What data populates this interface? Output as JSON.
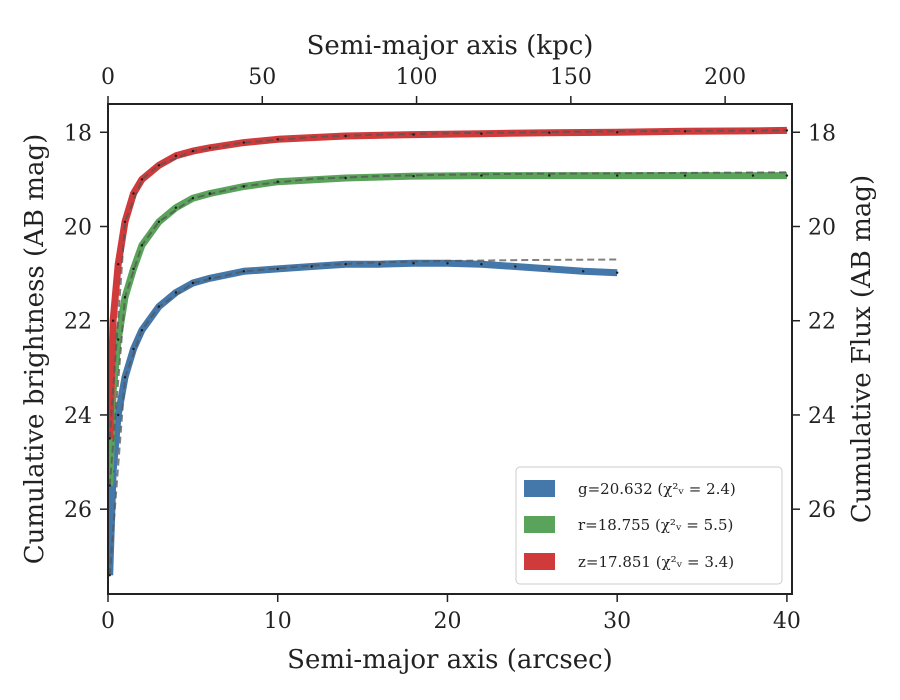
{
  "chart_data": {
    "type": "line",
    "xlabel": "Semi-major axis (arcsec)",
    "xlabel_top": "Semi-major axis (kpc)",
    "ylabel": "Cumulative brightness (AB mag)",
    "ylabel_right": "Cumulative Flux (AB mag)",
    "xlim": [
      0,
      40.3
    ],
    "ylim": [
      27.8,
      17.4
    ],
    "y_inverted": true,
    "x_ticks": [
      "0",
      "10",
      "20",
      "30",
      "40"
    ],
    "x_tick_values": [
      0,
      10,
      20,
      30,
      40
    ],
    "x_top_ticks": [
      "0",
      "50",
      "100",
      "150",
      "200"
    ],
    "x_top_tick_values_arcsec": [
      0,
      9.09,
      18.18,
      27.27,
      36.36
    ],
    "y_ticks": [
      "18",
      "20",
      "22",
      "24",
      "26"
    ],
    "y_tick_values": [
      18,
      20,
      22,
      24,
      26
    ],
    "y_right_ticks": [
      "18",
      "20",
      "22",
      "24",
      "26"
    ],
    "grid": false,
    "legend_position": "bottom-right",
    "series": [
      {
        "name": "g=20.632 ($\\chi^2_\\nu=2.4$)",
        "legend_label": "g=20.632 (χ²ᵥ = 2.4)",
        "color": "#4477aa",
        "x": [
          0.1,
          0.3,
          0.6,
          1.0,
          1.5,
          2.0,
          3.0,
          4.0,
          5.0,
          6.0,
          8.0,
          10.0,
          12.0,
          14.0,
          16.0,
          18.0,
          20.0,
          22.0,
          24.0,
          26.0,
          28.0,
          30.0
        ],
        "y": [
          27.4,
          25.2,
          24.0,
          23.2,
          22.6,
          22.2,
          21.7,
          21.4,
          21.2,
          21.1,
          20.95,
          20.9,
          20.85,
          20.8,
          20.8,
          20.78,
          20.78,
          20.8,
          20.85,
          20.9,
          20.95,
          20.98
        ],
        "model_x": [
          0.1,
          1.0,
          2.0,
          3.0,
          5.0,
          8.0,
          12.0,
          16.0,
          20.0,
          25.0,
          30.0
        ],
        "model_y": [
          27.4,
          23.2,
          22.2,
          21.7,
          21.2,
          20.95,
          20.83,
          20.76,
          20.73,
          20.71,
          20.7
        ]
      },
      {
        "name": "r=18.755 ($\\chi^2_\\nu=5.5$)",
        "legend_label": "r=18.755 (χ²ᵥ = 5.5)",
        "color": "#5aa35a",
        "x": [
          0.1,
          0.3,
          0.6,
          1.0,
          1.5,
          2.0,
          3.0,
          4.0,
          5.0,
          6.0,
          8.0,
          10.0,
          14.0,
          18.0,
          22.0,
          26.0,
          30.0,
          34.0,
          38.0,
          40.0
        ],
        "y": [
          25.5,
          23.5,
          22.4,
          21.5,
          20.9,
          20.4,
          19.9,
          19.6,
          19.4,
          19.3,
          19.15,
          19.05,
          18.97,
          18.93,
          18.92,
          18.92,
          18.92,
          18.92,
          18.92,
          18.92
        ],
        "model_x": [
          0.1,
          1.0,
          2.0,
          3.0,
          5.0,
          8.0,
          12.0,
          16.0,
          20.0,
          25.0,
          30.0,
          35.0,
          40.0
        ],
        "model_y": [
          25.5,
          21.5,
          20.4,
          19.9,
          19.4,
          19.14,
          18.99,
          18.93,
          18.9,
          18.88,
          18.87,
          18.86,
          18.85
        ]
      },
      {
        "name": "z=17.851 ($\\chi^2_\\nu=3.4$)",
        "legend_label": "z=17.851 (χ²ᵥ = 3.4)",
        "color": "#d03a3a",
        "x": [
          0.1,
          0.3,
          0.6,
          1.0,
          1.5,
          2.0,
          3.0,
          4.0,
          5.0,
          6.0,
          8.0,
          10.0,
          14.0,
          18.0,
          22.0,
          26.0,
          30.0,
          34.0,
          38.0,
          40.0
        ],
        "y": [
          24.5,
          22.0,
          20.8,
          19.9,
          19.3,
          19.0,
          18.7,
          18.5,
          18.4,
          18.33,
          18.22,
          18.15,
          18.08,
          18.05,
          18.03,
          18.01,
          18.0,
          17.98,
          17.97,
          17.96
        ],
        "model_x": [
          0.1,
          1.0,
          2.0,
          3.0,
          5.0,
          8.0,
          12.0,
          16.0,
          20.0,
          25.0,
          30.0,
          35.0,
          40.0
        ],
        "model_y": [
          24.5,
          19.9,
          19.0,
          18.7,
          18.4,
          18.22,
          18.1,
          18.05,
          18.02,
          18.0,
          17.98,
          17.97,
          17.96
        ]
      }
    ]
  }
}
